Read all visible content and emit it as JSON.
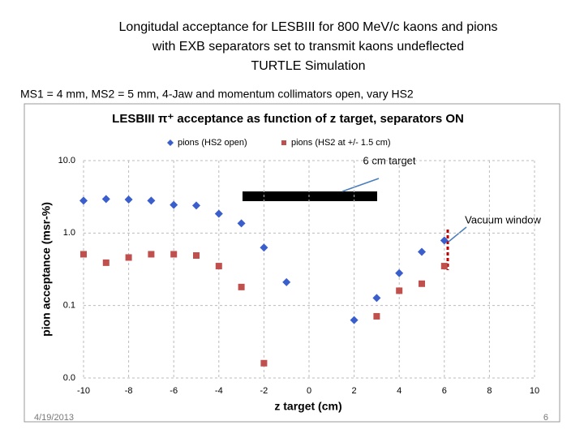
{
  "slide_title": [
    "Longitudal acceptance for LESBIII for 800 MeV/c kaons and pions",
    "with EXB separators set to transmit kaons undeflected",
    "TURTLE Simulation"
  ],
  "subtitle": "MS1 = 4 mm, MS2 = 5 mm, 4-Jaw and momentum collimators open, vary HS2",
  "footer_date": "4/19/2013",
  "page_number": "6",
  "chart_data": {
    "type": "scatter",
    "title": "LESBIII π⁺ acceptance as function of z target, separators ON",
    "xlabel": "z target (cm)",
    "ylabel": "pion acceptance (msr-%)",
    "annotations": [
      "6 cm target",
      "Vacuum window"
    ],
    "xlim": [
      -10,
      10
    ],
    "xticks": [
      -10,
      -8,
      -6,
      -4,
      -2,
      0,
      2,
      4,
      6,
      8,
      10
    ],
    "ylim": [
      0.01,
      10
    ],
    "log_y": true,
    "yticks": [
      {
        "value": 0.01,
        "label": "0.0"
      },
      {
        "value": 0.1,
        "label": "0.1"
      },
      {
        "value": 1,
        "label": "1.0"
      },
      {
        "value": 10,
        "label": "10.0"
      }
    ],
    "grid": true,
    "series": [
      {
        "name": "pions (HS2 open)",
        "color": "#3a5fcd",
        "marker": "diamond",
        "x": [
          -10,
          -9,
          -8,
          -7,
          -6,
          -5,
          -4,
          -3,
          -2,
          -1,
          2,
          3,
          4,
          5,
          6
        ],
        "values": [
          2.8,
          2.95,
          2.9,
          2.8,
          2.45,
          2.4,
          1.85,
          1.36,
          0.63,
          0.21,
          0.063,
          0.127,
          0.28,
          0.55,
          0.79
        ]
      },
      {
        "name": "pions (HS2 at +/- 1.5 cm)",
        "color": "#c0504d",
        "marker": "square",
        "x": [
          -10,
          -9,
          -8,
          -7,
          -6,
          -5,
          -4,
          -3,
          -2,
          3,
          4,
          5,
          6
        ],
        "values": [
          0.51,
          0.39,
          0.46,
          0.51,
          0.51,
          0.49,
          0.35,
          0.18,
          0.016,
          0.071,
          0.16,
          0.2,
          0.35
        ]
      }
    ]
  }
}
